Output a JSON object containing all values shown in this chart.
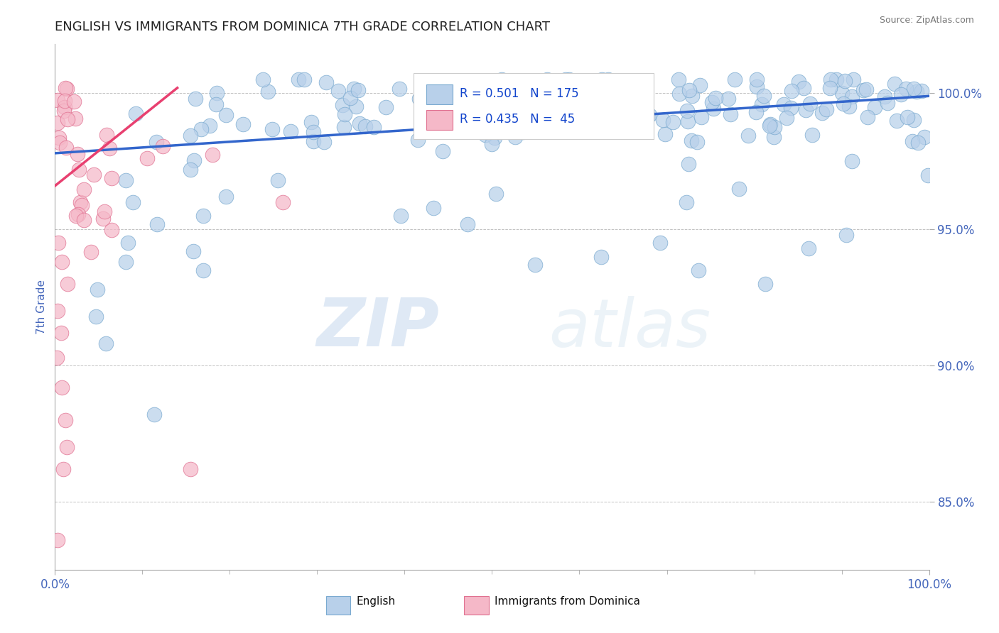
{
  "title": "ENGLISH VS IMMIGRANTS FROM DOMINICA 7TH GRADE CORRELATION CHART",
  "source": "Source: ZipAtlas.com",
  "ylabel": "7th Grade",
  "xlim": [
    0,
    1.0
  ],
  "ylim": [
    0.825,
    1.018
  ],
  "yticks": [
    0.85,
    0.9,
    0.95,
    1.0
  ],
  "ytick_labels": [
    "85.0%",
    "90.0%",
    "95.0%",
    "100.0%"
  ],
  "english_color": "#b8d0ea",
  "english_edge_color": "#7aaad0",
  "dominica_color": "#f5b8c8",
  "dominica_edge_color": "#e07090",
  "trend_english_color": "#3366cc",
  "trend_dominica_color": "#e84070",
  "legend_R_english": "R = 0.501",
  "legend_N_english": "N = 175",
  "legend_R_dominica": "R = 0.435",
  "legend_N_dominica": "N =  45",
  "watermark_zip": "ZIP",
  "watermark_atlas": "atlas",
  "english_n": 175,
  "dominica_n": 45,
  "background_color": "#ffffff",
  "grid_color": "#bbbbbb",
  "title_color": "#222222",
  "axis_label_color": "#4466bb",
  "tick_label_color": "#4466bb"
}
